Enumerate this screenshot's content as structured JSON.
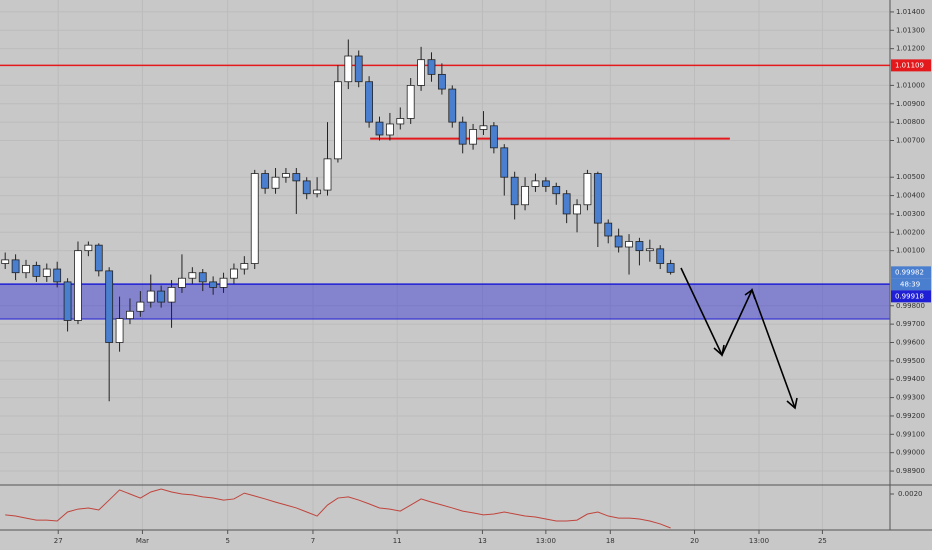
{
  "chart_data": [
    {
      "type": "candlestick",
      "open": [
        1.0003,
        1.0005,
        0.9998,
        1.0002,
        0.9996,
        1.0,
        0.9993,
        0.9972,
        1.001,
        1.0013,
        0.9999,
        0.996,
        0.9973,
        0.9977,
        0.9982,
        0.9988,
        0.9982,
        0.999,
        0.9995,
        0.9998,
        0.9993,
        0.999,
        0.9995,
        1.0,
        1.0003,
        1.0052,
        1.0044,
        1.005,
        1.0052,
        1.0048,
        1.0041,
        1.0043,
        1.006,
        1.0102,
        1.0116,
        1.0102,
        1.008,
        1.0073,
        1.0079,
        1.0082,
        1.01,
        1.0114,
        1.0106,
        1.0098,
        1.008,
        1.0068,
        1.0076,
        1.0078,
        1.0066,
        1.005,
        1.0035,
        1.0045,
        1.0048,
        1.0045,
        1.0041,
        1.003,
        1.0035,
        1.0052,
        1.0025,
        1.0018,
        1.0012,
        1.0015,
        1.001,
        1.0011,
        1.0003
      ],
      "high": [
        1.0009,
        1.0008,
        1.0005,
        1.0004,
        1.0003,
        1.0004,
        0.9995,
        1.0015,
        1.0015,
        1.0014,
        1.0001,
        0.9985,
        0.9984,
        0.9988,
        0.9997,
        0.9991,
        0.9994,
        1.0008,
        1.0001,
        1.0,
        0.9996,
        0.9998,
        1.0003,
        1.0007,
        1.0054,
        1.0054,
        1.0055,
        1.0055,
        1.0055,
        1.005,
        1.005,
        1.008,
        1.0111,
        1.0125,
        1.0119,
        1.0105,
        1.0083,
        1.0085,
        1.0088,
        1.0104,
        1.0121,
        1.0118,
        1.0112,
        1.01,
        1.0083,
        1.0079,
        1.0086,
        1.008,
        1.0068,
        1.0053,
        1.005,
        1.0052,
        1.005,
        1.0047,
        1.0043,
        1.0038,
        1.0054,
        1.0053,
        1.0027,
        1.0022,
        1.0019,
        1.0017,
        1.0016,
        1.0013,
        1.0005
      ],
      "low": [
        1.0,
        0.9994,
        0.9995,
        0.9993,
        0.9993,
        0.999,
        0.9966,
        0.997,
        1.0007,
        0.9996,
        0.9928,
        0.9955,
        0.997,
        0.9974,
        0.9979,
        0.9979,
        0.9968,
        0.9987,
        0.9992,
        0.9988,
        0.9986,
        0.9987,
        0.9992,
        0.9997,
        1.0,
        1.0041,
        1.0041,
        1.0047,
        1.003,
        1.0038,
        1.0039,
        1.004,
        1.0058,
        1.0098,
        1.0099,
        1.0077,
        1.007,
        1.007,
        1.0076,
        1.0079,
        1.0097,
        1.0102,
        1.0095,
        1.0077,
        1.0063,
        1.0065,
        1.0073,
        1.0063,
        1.004,
        1.0027,
        1.0032,
        1.0042,
        1.0042,
        1.0035,
        1.0025,
        1.002,
        1.0032,
        1.0012,
        1.0014,
        1.0009,
        0.9997,
        1.0002,
        1.0004,
        1.0,
        0.9997
      ],
      "close": [
        1.0005,
        0.9998,
        1.0002,
        0.9996,
        1.0,
        0.9993,
        0.9972,
        1.001,
        1.0013,
        0.9999,
        0.996,
        0.9973,
        0.9977,
        0.9982,
        0.9988,
        0.9982,
        0.999,
        0.9995,
        0.9998,
        0.9993,
        0.999,
        0.9995,
        1.0,
        1.0003,
        1.0052,
        1.0044,
        1.005,
        1.0052,
        1.0048,
        1.0041,
        1.0043,
        1.006,
        1.0102,
        1.0116,
        1.0102,
        1.008,
        1.0073,
        1.0079,
        1.0082,
        1.01,
        1.0114,
        1.0106,
        1.0098,
        1.008,
        1.0068,
        1.0076,
        1.0078,
        1.0066,
        1.005,
        1.0035,
        1.0045,
        1.0048,
        1.0045,
        1.0041,
        1.003,
        1.0035,
        1.0052,
        1.0025,
        1.0018,
        1.0012,
        1.0015,
        1.001,
        1.0011,
        1.0003,
        0.99982
      ],
      "up_color": "#ffffff",
      "down_color": "#4a7ecf",
      "xlim": [
        -0.5,
        85.1
      ],
      "ylim": [
        0.98824,
        1.01465
      ],
      "yticks": [
        {
          "value": 1.014,
          "label": "1.01400"
        },
        {
          "value": 1.013,
          "label": "1.01300"
        },
        {
          "value": 1.012,
          "label": "1.01200"
        },
        {
          "value": 1.01,
          "label": "1.01000"
        },
        {
          "value": 1.009,
          "label": "1.00900"
        },
        {
          "value": 1.008,
          "label": "1.00800"
        },
        {
          "value": 1.007,
          "label": "1.00700"
        },
        {
          "value": 1.005,
          "label": "1.00500"
        },
        {
          "value": 1.004,
          "label": "1.00400"
        },
        {
          "value": 1.003,
          "label": "1.00300"
        },
        {
          "value": 1.002,
          "label": "1.00200"
        },
        {
          "value": 1.001,
          "label": "1.00100"
        },
        {
          "value": 0.998,
          "label": "0.99800"
        },
        {
          "value": 0.997,
          "label": "0.99700"
        },
        {
          "value": 0.996,
          "label": "0.99600"
        },
        {
          "value": 0.995,
          "label": "0.99500"
        },
        {
          "value": 0.994,
          "label": "0.99400"
        },
        {
          "value": 0.993,
          "label": "0.99300"
        },
        {
          "value": 0.992,
          "label": "0.99200"
        },
        {
          "value": 0.991,
          "label": "0.99100"
        },
        {
          "value": 0.99,
          "label": "0.99000"
        },
        {
          "value": 0.989,
          "label": "0.98900"
        }
      ],
      "xticks": [
        {
          "value": 5.1,
          "label": "27"
        },
        {
          "value": 13.2,
          "label": "Mar"
        },
        {
          "value": 21.4,
          "label": "5"
        },
        {
          "value": 29.6,
          "label": "7"
        },
        {
          "value": 37.7,
          "label": "11"
        },
        {
          "value": 45.9,
          "label": "13"
        },
        {
          "value": 52.0,
          "label": "13:00"
        },
        {
          "value": 58.2,
          "label": "18"
        },
        {
          "value": 66.3,
          "label": "20"
        },
        {
          "value": 72.5,
          "label": "13:00"
        },
        {
          "value": 78.6,
          "label": "25"
        }
      ],
      "levels": [
        {
          "value": 1.01109,
          "label": "1.01109",
          "color": "#e3191c"
        }
      ],
      "segment": {
        "value": 1.0071,
        "x_range": [
          35.1,
          69.7
        ],
        "color": "#e3191c"
      },
      "zone": {
        "range": [
          0.99728,
          0.99918
        ],
        "label": "0.99918",
        "color": "#1f1fd6"
      },
      "last_price": {
        "value": 0.99982,
        "label": "0.99982",
        "color": "#4a7ecf"
      },
      "countdown": "48:39",
      "grid": true
    },
    {
      "type": "line",
      "color": "#c0443c",
      "ylim": [
        0.0004,
        0.0024
      ],
      "yticks": [
        {
          "value": 0.002,
          "label": "0.0020"
        }
      ],
      "values": [
        0.00107,
        0.00102,
        0.00093,
        0.00084,
        0.00084,
        0.0008,
        0.0012,
        0.00133,
        0.00138,
        0.00129,
        0.00173,
        0.00218,
        0.002,
        0.00182,
        0.00209,
        0.00222,
        0.00209,
        0.002,
        0.00196,
        0.00187,
        0.00182,
        0.00173,
        0.00178,
        0.00204,
        0.00191,
        0.00178,
        0.00164,
        0.00151,
        0.00138,
        0.0012,
        0.00102,
        0.00151,
        0.00182,
        0.00187,
        0.00173,
        0.00156,
        0.00138,
        0.00133,
        0.00124,
        0.00151,
        0.00178,
        0.00164,
        0.00151,
        0.00138,
        0.00124,
        0.00116,
        0.00107,
        0.00111,
        0.0012,
        0.00111,
        0.00102,
        0.00098,
        0.00089,
        0.0008,
        0.0008,
        0.00084,
        0.00111,
        0.0012,
        0.00102,
        0.00093,
        0.00093,
        0.00089,
        0.0008,
        0.00067,
        0.00049
      ]
    }
  ]
}
